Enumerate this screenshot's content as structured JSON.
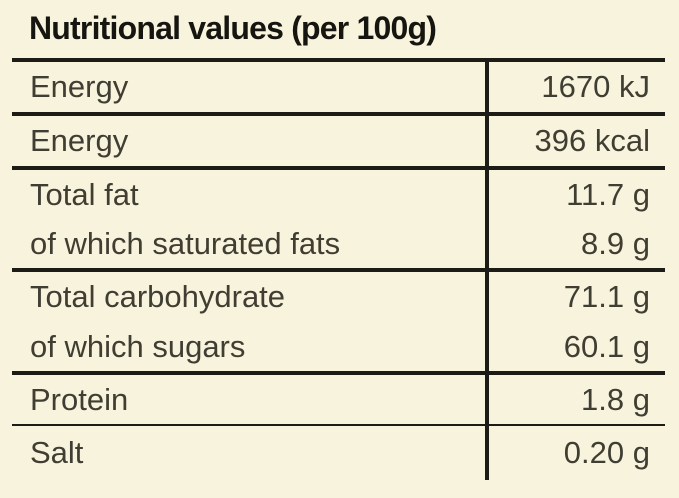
{
  "title": "Nutritional values (per 100g)",
  "colors": {
    "background": "#f7f3dc",
    "rule": "#1c1b15",
    "text": "#403e33",
    "title_text": "#161510"
  },
  "table": {
    "rows": [
      {
        "label": "Energy",
        "value": "1670 kJ"
      },
      {
        "label": "Energy",
        "value": "396 kcal"
      },
      {
        "label": "Total fat",
        "value": "11.7 g"
      },
      {
        "label": "of which saturated fats",
        "value": "8.9 g"
      },
      {
        "label": "Total carbohydrate",
        "value": "71.1 g"
      },
      {
        "label": "of which sugars",
        "value": "60.1 g"
      },
      {
        "label": "Protein",
        "value": "1.8 g"
      },
      {
        "label": "Salt",
        "value": "0.20 g"
      }
    ]
  }
}
